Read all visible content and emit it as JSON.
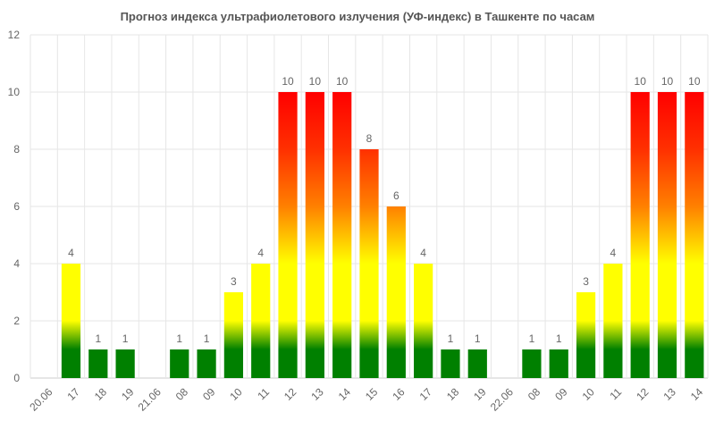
{
  "chart_data": {
    "type": "bar",
    "title": "Прогноз индекса ультрафиолетового излучения (УФ-индекс) в Ташкенте по часам",
    "xlabel": "",
    "ylabel": "",
    "ylim": [
      0,
      12
    ],
    "y_ticks": [
      "0",
      "2",
      "4",
      "6",
      "8",
      "10",
      "12"
    ],
    "grid": true,
    "legend": "none",
    "categories": [
      "20.06",
      "17",
      "18",
      "19",
      "21.06",
      "08",
      "09",
      "10",
      "11",
      "12",
      "13",
      "14",
      "15",
      "16",
      "17",
      "18",
      "19",
      "22.06",
      "08",
      "09",
      "10",
      "11",
      "12",
      "13",
      "14"
    ],
    "values": [
      0,
      4,
      1,
      1,
      0,
      1,
      1,
      3,
      4,
      10,
      10,
      10,
      8,
      6,
      4,
      1,
      1,
      0,
      1,
      1,
      3,
      4,
      10,
      10,
      10
    ],
    "data_labels": [
      "",
      "4",
      "1",
      "1",
      "",
      "1",
      "1",
      "3",
      "4",
      "10",
      "10",
      "10",
      "8",
      "6",
      "4",
      "1",
      "1",
      "",
      "1",
      "1",
      "3",
      "4",
      "10",
      "10",
      "10"
    ],
    "colors": {
      "low": "#008000",
      "moderate": "#ffff00",
      "high": "#ff8000",
      "very_high": "#ff0000",
      "grid": "#e6e6e6",
      "axis": "#cccccc"
    }
  }
}
